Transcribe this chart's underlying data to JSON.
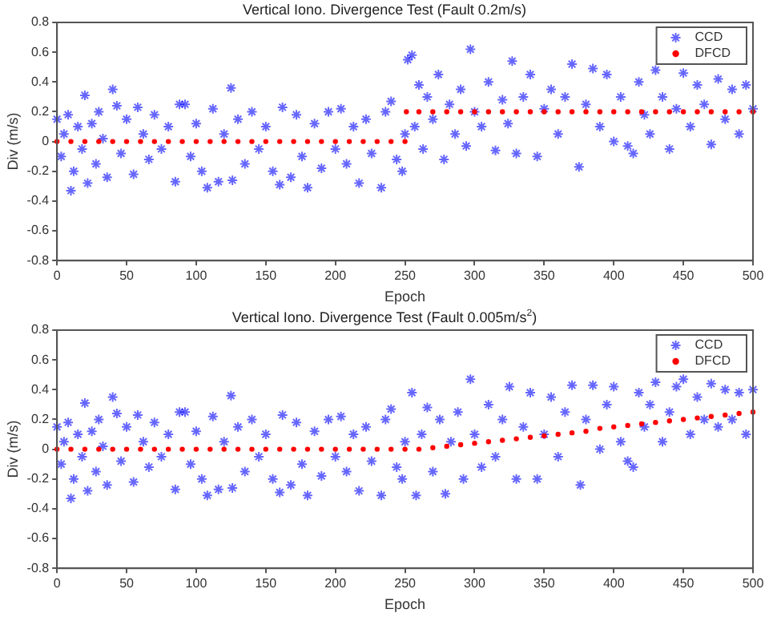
{
  "chart_data": [
    {
      "type": "scatter",
      "title": "Vertical Iono. Divergence Test (Fault 0.2m/s)",
      "xlabel": "Epoch",
      "ylabel": "Div (m/s)",
      "xlim": [
        0,
        500
      ],
      "xticks": [
        0,
        50,
        100,
        150,
        200,
        250,
        300,
        350,
        400,
        450,
        500
      ],
      "ylim": [
        -0.8,
        0.8
      ],
      "yticks": [
        -0.8,
        -0.6,
        -0.4,
        -0.2,
        0,
        0.2,
        0.4,
        0.6,
        0.8
      ],
      "grid": false,
      "legend": "top right",
      "series": [
        {
          "name": "CCD",
          "color": "#0000ff",
          "marker": "cross",
          "x": [
            0,
            3,
            5,
            8,
            10,
            12,
            15,
            18,
            20,
            22,
            25,
            28,
            30,
            33,
            36,
            40,
            43,
            46,
            50,
            55,
            58,
            62,
            66,
            70,
            75,
            80,
            85,
            88,
            92,
            96,
            100,
            104,
            108,
            112,
            116,
            120,
            125,
            126,
            130,
            135,
            140,
            145,
            150,
            155,
            160,
            162,
            168,
            172,
            176,
            180,
            185,
            190,
            195,
            200,
            204,
            208,
            213,
            217,
            222,
            226,
            233,
            236,
            240,
            244,
            248,
            250,
            252,
            255,
            257,
            260,
            263,
            266,
            270,
            274,
            278,
            282,
            286,
            290,
            294,
            297,
            300,
            305,
            310,
            315,
            320,
            324,
            327,
            330,
            335,
            340,
            345,
            350,
            355,
            360,
            365,
            370,
            375,
            380,
            385,
            390,
            395,
            400,
            405,
            410,
            414,
            418,
            422,
            426,
            430,
            435,
            440,
            445,
            450,
            455,
            460,
            465,
            470,
            475,
            480,
            485,
            490,
            495,
            500
          ],
          "values": [
            0.15,
            -0.1,
            0.05,
            0.18,
            -0.33,
            -0.2,
            0.1,
            -0.05,
            0.31,
            -0.28,
            0.12,
            -0.15,
            0.2,
            0.02,
            -0.24,
            0.35,
            0.24,
            -0.08,
            0.15,
            -0.22,
            0.23,
            0.05,
            -0.12,
            0.18,
            -0.05,
            0.1,
            -0.27,
            0.25,
            0.25,
            -0.1,
            0.12,
            -0.2,
            -0.31,
            0.22,
            -0.27,
            0.05,
            0.36,
            -0.26,
            0.15,
            -0.15,
            0.2,
            -0.05,
            0.1,
            -0.2,
            -0.29,
            0.23,
            -0.24,
            0.18,
            -0.1,
            -0.31,
            0.12,
            -0.18,
            0.2,
            -0.05,
            0.22,
            -0.15,
            0.1,
            -0.28,
            0.15,
            -0.08,
            -0.31,
            0.2,
            0.27,
            -0.12,
            -0.2,
            0.05,
            0.55,
            0.58,
            0.1,
            0.38,
            -0.05,
            0.3,
            0.15,
            0.45,
            -0.12,
            0.25,
            0.05,
            0.35,
            -0.03,
            0.62,
            0.2,
            0.1,
            0.4,
            -0.06,
            0.28,
            0.12,
            0.54,
            -0.08,
            0.3,
            0.45,
            -0.1,
            0.22,
            0.35,
            0.05,
            0.3,
            0.52,
            -0.17,
            0.25,
            0.49,
            0.1,
            0.45,
            0,
            0.3,
            -0.03,
            -0.08,
            0.4,
            0.18,
            0.05,
            0.48,
            0.3,
            -0.05,
            0.22,
            0.46,
            0.1,
            0.38,
            0.25,
            -0.02,
            0.42,
            0.15,
            0.35,
            0.05,
            0.38,
            0.22
          ]
        },
        {
          "name": "DFCD",
          "color": "#ff0000",
          "marker": "circle",
          "x": [
            0,
            10,
            20,
            30,
            40,
            50,
            60,
            70,
            80,
            90,
            100,
            110,
            120,
            130,
            140,
            150,
            160,
            170,
            180,
            190,
            200,
            210,
            220,
            230,
            240,
            250,
            251,
            260,
            270,
            280,
            290,
            300,
            310,
            320,
            330,
            340,
            350,
            360,
            370,
            380,
            390,
            400,
            410,
            420,
            430,
            440,
            450,
            460,
            470,
            480,
            490,
            500
          ],
          "values": [
            0,
            0,
            0,
            0,
            0,
            0,
            0,
            0,
            0,
            0,
            0,
            0,
            0,
            0,
            0,
            0,
            0,
            0,
            0,
            0,
            0,
            0,
            0,
            0,
            0,
            0,
            0.2,
            0.2,
            0.2,
            0.2,
            0.2,
            0.2,
            0.2,
            0.2,
            0.2,
            0.2,
            0.2,
            0.2,
            0.2,
            0.2,
            0.2,
            0.2,
            0.2,
            0.2,
            0.2,
            0.2,
            0.2,
            0.2,
            0.2,
            0.2,
            0.2,
            0.2
          ]
        }
      ]
    },
    {
      "type": "scatter",
      "title": "Vertical Iono. Divergence Test (Fault 0.005m/s$^{2}$)",
      "xlabel": "Epoch",
      "ylabel": "Div (m/s)",
      "xlim": [
        0,
        500
      ],
      "xticks": [
        0,
        50,
        100,
        150,
        200,
        250,
        300,
        350,
        400,
        450,
        500
      ],
      "ylim": [
        -0.8,
        0.8
      ],
      "yticks": [
        -0.8,
        -0.6,
        -0.4,
        -0.2,
        0,
        0.2,
        0.4,
        0.6,
        0.8
      ],
      "grid": false,
      "legend": "top right",
      "series": [
        {
          "name": "CCD",
          "color": "#0000ff",
          "marker": "cross",
          "x": [
            0,
            3,
            5,
            8,
            10,
            12,
            15,
            18,
            20,
            22,
            25,
            28,
            30,
            33,
            36,
            40,
            43,
            46,
            50,
            55,
            58,
            62,
            66,
            70,
            75,
            80,
            85,
            88,
            92,
            96,
            100,
            104,
            108,
            112,
            116,
            120,
            125,
            126,
            130,
            135,
            140,
            145,
            150,
            155,
            160,
            162,
            168,
            172,
            176,
            180,
            185,
            190,
            195,
            200,
            204,
            208,
            213,
            217,
            222,
            226,
            233,
            236,
            240,
            244,
            248,
            250,
            255,
            258,
            262,
            266,
            270,
            275,
            279,
            283,
            288,
            292,
            297,
            300,
            305,
            310,
            315,
            320,
            325,
            330,
            335,
            340,
            345,
            350,
            355,
            360,
            365,
            370,
            376,
            380,
            385,
            390,
            395,
            400,
            405,
            410,
            414,
            418,
            422,
            426,
            430,
            435,
            440,
            445,
            450,
            455,
            460,
            465,
            470,
            475,
            480,
            485,
            490,
            495,
            500
          ],
          "values": [
            0.15,
            -0.1,
            0.05,
            0.18,
            -0.33,
            -0.2,
            0.1,
            -0.05,
            0.31,
            -0.28,
            0.12,
            -0.15,
            0.2,
            0.02,
            -0.24,
            0.35,
            0.24,
            -0.08,
            0.15,
            -0.22,
            0.23,
            0.05,
            -0.12,
            0.18,
            -0.05,
            0.1,
            -0.27,
            0.25,
            0.25,
            -0.1,
            0.12,
            -0.2,
            -0.31,
            0.22,
            -0.27,
            0.05,
            0.36,
            -0.26,
            0.15,
            -0.15,
            0.2,
            -0.05,
            0.1,
            -0.2,
            -0.29,
            0.23,
            -0.24,
            0.18,
            -0.1,
            -0.31,
            0.12,
            -0.18,
            0.2,
            -0.05,
            0.22,
            -0.15,
            0.1,
            -0.28,
            0.15,
            -0.08,
            -0.31,
            0.2,
            0.27,
            -0.12,
            -0.2,
            0.05,
            0.38,
            -0.31,
            0.1,
            0.28,
            -0.15,
            0.2,
            -0.3,
            0.05,
            0.25,
            -0.2,
            0.47,
            0.1,
            -0.12,
            0.3,
            -0.05,
            0.2,
            0.42,
            -0.2,
            0.15,
            0.38,
            -0.2,
            0.1,
            0.35,
            -0.05,
            0.25,
            0.43,
            -0.24,
            0.2,
            0.43,
            0,
            0.3,
            0.42,
            0.05,
            -0.08,
            -0.12,
            0.38,
            0.15,
            0.3,
            0.45,
            0.05,
            0.25,
            0.42,
            0.47,
            0.1,
            0.35,
            0.2,
            0.44,
            0.15,
            0.4,
            0.2,
            0.38,
            0.1,
            0.4
          ]
        },
        {
          "name": "DFCD",
          "color": "#ff0000",
          "marker": "circle",
          "x": [
            0,
            10,
            20,
            30,
            40,
            50,
            60,
            70,
            80,
            90,
            100,
            110,
            120,
            130,
            140,
            150,
            160,
            170,
            180,
            190,
            200,
            210,
            220,
            230,
            240,
            250,
            260,
            270,
            280,
            290,
            300,
            310,
            320,
            330,
            340,
            350,
            360,
            370,
            380,
            390,
            400,
            410,
            420,
            430,
            440,
            450,
            460,
            470,
            480,
            490,
            500
          ],
          "values": [
            0,
            0,
            0,
            0,
            0,
            0,
            0,
            0,
            0,
            0,
            0,
            0,
            0,
            0,
            0,
            0,
            0,
            0,
            0,
            0,
            0,
            0,
            0,
            0,
            0,
            0,
            0,
            0.01,
            0.02,
            0.03,
            0.04,
            0.05,
            0.06,
            0.07,
            0.08,
            0.09,
            0.1,
            0.11,
            0.12,
            0.14,
            0.15,
            0.16,
            0.17,
            0.18,
            0.19,
            0.2,
            0.21,
            0.22,
            0.23,
            0.24,
            0.25
          ]
        }
      ]
    }
  ]
}
